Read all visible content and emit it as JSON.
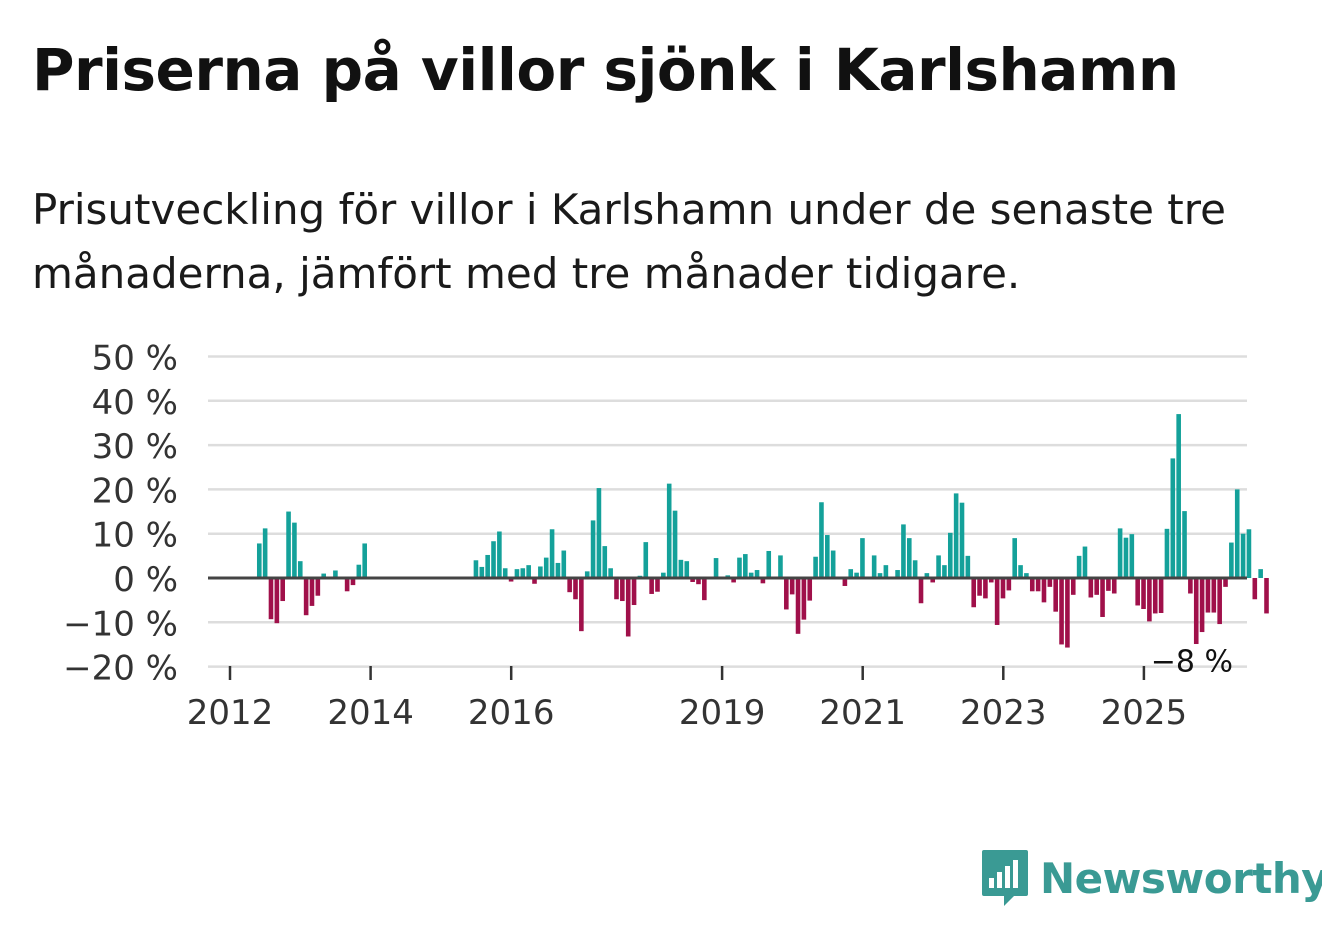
{
  "header": {
    "title": "Priserna på villor sjönk i Karlshamn",
    "subtitle": "Prisutveckling för villor i Karlshamn under de senaste tre månaderna, jämfört med tre månader tidigare."
  },
  "brand": {
    "name": "Newsworthy",
    "color": "#3a9a94"
  },
  "colors": {
    "positive": "#14a19a",
    "negative": "#a0104a",
    "grid": "#dddddd",
    "zero": "#444444"
  },
  "chart_data": {
    "type": "bar",
    "title": "Priserna på villor sjönk i Karlshamn",
    "xlabel": "",
    "ylabel": "",
    "ylim": [
      -20,
      50
    ],
    "y_ticks": [
      -20,
      -10,
      0,
      10,
      20,
      30,
      40,
      50
    ],
    "y_tick_labels": [
      "−20 %",
      "−10 %",
      "0 %",
      "10 %",
      "20 %",
      "30 %",
      "40 %",
      "50 %"
    ],
    "x_ticks": [
      2012,
      2014,
      2016,
      2019,
      2021,
      2023,
      2025
    ],
    "x_tick_labels": [
      "2012",
      "2014",
      "2016",
      "2019",
      "2021",
      "2023",
      "2025"
    ],
    "x_start": 2012,
    "step_years": 0.0833,
    "annotation": {
      "text": "−8 %",
      "value": -8
    },
    "values": [
      0,
      0,
      0,
      0,
      0,
      7.8,
      11.2,
      -9.3,
      -10.2,
      -5.2,
      15,
      12.5,
      3.8,
      -8.4,
      -6.3,
      -4,
      1,
      0,
      1.7,
      0,
      -3,
      -1.6,
      3,
      7.8,
      0,
      0,
      0,
      0,
      0,
      0,
      0,
      0,
      0,
      0,
      0,
      0,
      0,
      0,
      0,
      0,
      0,
      0,
      4,
      2.5,
      5.2,
      8.3,
      10.5,
      2.2,
      -0.8,
      2,
      2.2,
      2.9,
      -1.3,
      2.6,
      4.6,
      11,
      3.4,
      6.2,
      -3.2,
      -4.8,
      -12,
      1.5,
      13,
      20.3,
      7.2,
      2.2,
      -4.8,
      -5.2,
      -13.2,
      -6.1,
      0.5,
      8.1,
      -3.6,
      -3.1,
      1.2,
      21.3,
      15.2,
      4.1,
      3.8,
      -0.9,
      -1.4,
      -5,
      0,
      4.5,
      0,
      0.6,
      -1,
      4.6,
      5.4,
      1.2,
      1.8,
      -1.2,
      6.1,
      0,
      5.1,
      -7.1,
      -3.7,
      -12.6,
      -9.4,
      -5.1,
      4.8,
      17.1,
      9.7,
      6.2,
      0,
      -1.8,
      2,
      1.2,
      9,
      0,
      5.1,
      1.1,
      2.9,
      0,
      1.8,
      12.1,
      9,
      4,
      -5.7,
      1.1,
      -1,
      5.1,
      2.9,
      10.2,
      19.1,
      17,
      5,
      -6.6,
      -4,
      -4.6,
      -1,
      -10.6,
      -4.6,
      -2.8,
      9,
      2.9,
      1.1,
      -3,
      -3,
      -5.5,
      -2,
      -7.6,
      -15,
      -15.7,
      -3.8,
      5,
      7.1,
      -4.4,
      -3.8,
      -8.8,
      -2.9,
      -3.5,
      11.2,
      9.1,
      9.9,
      -6.2,
      -7,
      -9.8,
      -8,
      -7.9,
      11.1,
      27,
      37,
      15.1,
      -3.5,
      -14.9,
      -12.2,
      -7.8,
      -7.8,
      -10.4,
      -2,
      8,
      20,
      10,
      11,
      -4.8,
      2,
      -8
    ]
  }
}
